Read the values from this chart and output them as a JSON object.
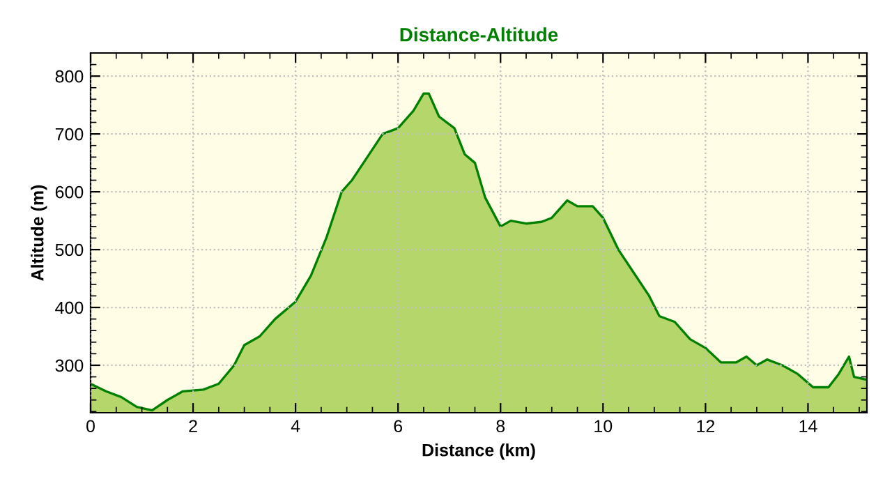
{
  "chart_data": {
    "type": "area",
    "title": "Distance-Altitude",
    "xlabel": "Distance (km)",
    "ylabel": "Altitude (m)",
    "x": [
      0,
      0.3,
      0.6,
      0.9,
      1.2,
      1.5,
      1.8,
      2.2,
      2.5,
      2.8,
      3.0,
      3.3,
      3.6,
      4.0,
      4.3,
      4.6,
      4.9,
      5.1,
      5.4,
      5.7,
      6.0,
      6.3,
      6.5,
      6.6,
      6.8,
      7.1,
      7.3,
      7.5,
      7.7,
      8.0,
      8.2,
      8.5,
      8.8,
      9.0,
      9.3,
      9.5,
      9.8,
      10.0,
      10.3,
      10.6,
      10.9,
      11.1,
      11.4,
      11.7,
      12.0,
      12.3,
      12.6,
      12.8,
      13.0,
      13.2,
      13.5,
      13.8,
      14.1,
      14.4,
      14.6,
      14.8,
      14.9,
      15.15
    ],
    "series": [
      {
        "color": "#008000",
        "values": [
          268,
          255,
          245,
          228,
          222,
          240,
          255,
          258,
          268,
          300,
          335,
          350,
          380,
          410,
          455,
          520,
          600,
          620,
          660,
          700,
          710,
          740,
          770,
          770,
          730,
          710,
          665,
          650,
          590,
          540,
          550,
          545,
          548,
          555,
          585,
          575,
          575,
          555,
          500,
          460,
          420,
          385,
          375,
          345,
          330,
          305,
          305,
          315,
          300,
          310,
          300,
          285,
          262,
          262,
          285,
          315,
          280,
          275
        ]
      }
    ],
    "xlim": [
      0,
      15.15
    ],
    "ylim": [
      218,
      840
    ],
    "xticks": [
      0,
      2,
      4,
      6,
      8,
      10,
      12,
      14
    ],
    "yticks": [
      300,
      400,
      500,
      600,
      700,
      800
    ],
    "grid": true,
    "line_style": "solid"
  }
}
